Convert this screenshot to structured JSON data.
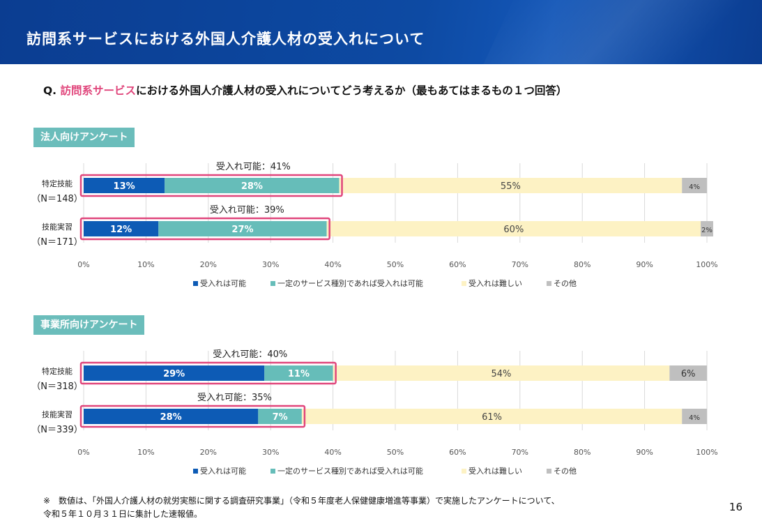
{
  "header": {
    "title": "訪問系サービスにおける外国人介護人材の受入れについて"
  },
  "question": {
    "prefix": "Q. ",
    "highlight": "訪問系サービス",
    "rest": "における外国人介護人材の受入れについてどう考えるか（最もあてはまるもの１つ回答）"
  },
  "colors": {
    "accept": "#0d5bb5",
    "conditional": "#66bdb9",
    "difficult": "#fdf2c4",
    "other": "#bfbfbf",
    "highlight_box": "#e0457b",
    "section_label": "#6bbdbb"
  },
  "chart_data": [
    {
      "type": "bar",
      "orientation": "horizontal-stacked",
      "section_label": "法人向けアンケート",
      "categories": [
        "特定技能",
        "技能実習"
      ],
      "category_n": [
        "（N＝148）",
        "（N＝171）"
      ],
      "acceptable_labels": [
        "受入れ可能：41%",
        "受入れ可能：39%"
      ],
      "series": [
        {
          "name": "受入れは可能",
          "values": [
            13,
            12
          ]
        },
        {
          "name": "一定のサービス種別であれば受入れは可能",
          "values": [
            28,
            27
          ]
        },
        {
          "name": "受入れは難しい",
          "values": [
            55,
            60
          ]
        },
        {
          "name": "その他",
          "values": [
            4,
            2
          ]
        }
      ],
      "xlim": [
        0,
        100
      ],
      "xticks": [
        "0%",
        "10%",
        "20%",
        "30%",
        "40%",
        "50%",
        "60%",
        "70%",
        "80%",
        "90%",
        "100%"
      ],
      "grid": true,
      "legend": "bottom"
    },
    {
      "type": "bar",
      "orientation": "horizontal-stacked",
      "section_label": "事業所向けアンケート",
      "categories": [
        "特定技能",
        "技能実習"
      ],
      "category_n": [
        "（N＝318）",
        "（N＝339）"
      ],
      "acceptable_labels": [
        "受入れ可能：40%",
        "受入れ可能：35%"
      ],
      "series": [
        {
          "name": "受入れは可能",
          "values": [
            29,
            28
          ]
        },
        {
          "name": "一定のサービス種別であれば受入れは可能",
          "values": [
            11,
            7
          ]
        },
        {
          "name": "受入れは難しい",
          "values": [
            54,
            61
          ]
        },
        {
          "name": "その他",
          "values": [
            6,
            4
          ]
        }
      ],
      "xlim": [
        0,
        100
      ],
      "xticks": [
        "0%",
        "10%",
        "20%",
        "30%",
        "40%",
        "50%",
        "60%",
        "70%",
        "80%",
        "90%",
        "100%"
      ],
      "grid": true,
      "legend": "bottom"
    }
  ],
  "footnote": {
    "line1": "※　数値は、「外国人介護人材の就労実態に関する調査研究事業」（令和５年度老人保健健康増進等事業）で実施したアンケートについて、",
    "line2": "令和５年１０月３１日に集計した速報値。"
  },
  "page_number": "16"
}
